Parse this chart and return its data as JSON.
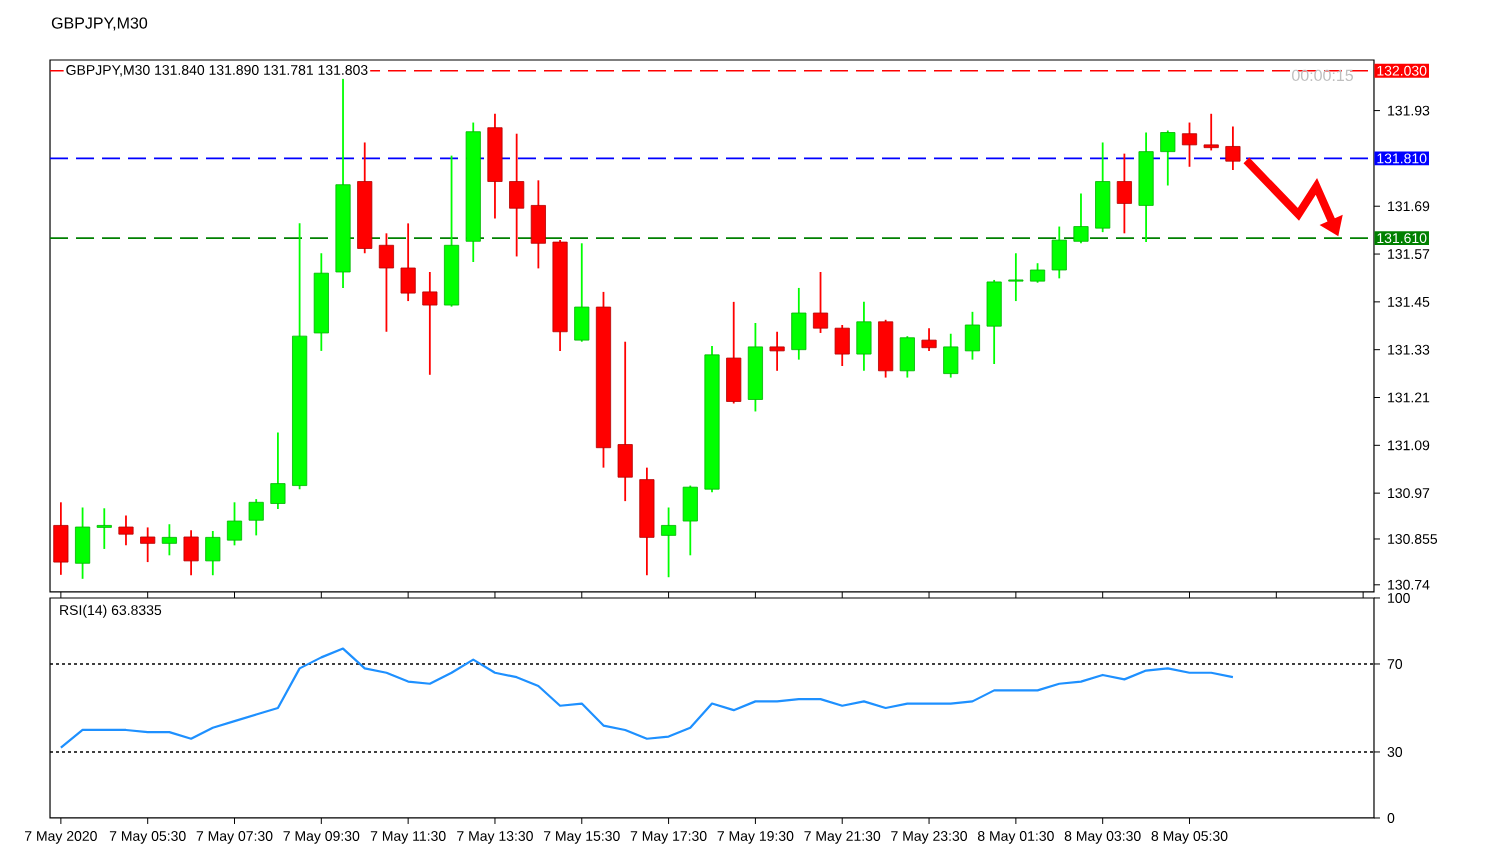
{
  "chart_data": [
    {
      "type": "candlestick",
      "title": "GBPJPY,M30",
      "subtitle": "GBPJPY,M30  131.840 131.890 131.781 131.803",
      "categories": [
        null,
        null,
        null,
        null,
        null,
        null,
        null,
        null,
        null,
        null,
        null,
        null,
        null,
        null,
        null,
        null,
        null,
        null,
        null,
        null,
        null,
        null,
        null,
        null,
        null,
        null,
        null,
        null,
        null,
        null,
        null,
        null,
        null,
        null,
        null,
        null,
        null,
        null,
        null,
        null,
        null,
        null,
        null,
        null,
        null,
        null,
        null,
        null,
        null,
        null,
        null,
        null,
        null,
        null,
        null,
        null,
        null,
        null,
        null,
        null,
        null
      ],
      "ohlc": [
        [
          130.889,
          130.947,
          130.765,
          130.797
        ],
        [
          130.794,
          130.934,
          130.755,
          130.885
        ],
        [
          130.884,
          130.932,
          130.83,
          130.889
        ],
        [
          130.885,
          130.914,
          130.839,
          130.867
        ],
        [
          130.86,
          130.884,
          130.797,
          130.844
        ],
        [
          130.844,
          130.892,
          130.814,
          130.859
        ],
        [
          130.86,
          130.877,
          130.764,
          130.8
        ],
        [
          130.8,
          130.875,
          130.764,
          130.859
        ],
        [
          130.852,
          130.947,
          130.839,
          130.9
        ],
        [
          130.902,
          130.955,
          130.864,
          130.947
        ],
        [
          130.944,
          131.122,
          130.93,
          130.994
        ],
        [
          130.989,
          131.647,
          130.98,
          131.364
        ],
        [
          131.372,
          131.572,
          131.327,
          131.522
        ],
        [
          131.525,
          132.01,
          131.485,
          131.744
        ],
        [
          131.752,
          131.85,
          131.572,
          131.584
        ],
        [
          131.592,
          131.622,
          131.375,
          131.535
        ],
        [
          131.535,
          131.647,
          131.452,
          131.472
        ],
        [
          131.475,
          131.525,
          131.267,
          131.442
        ],
        [
          131.442,
          131.817,
          131.438,
          131.592
        ],
        [
          131.602,
          131.9,
          131.55,
          131.877
        ],
        [
          131.887,
          131.922,
          131.659,
          131.752
        ],
        [
          131.752,
          131.872,
          131.564,
          131.685
        ],
        [
          131.692,
          131.755,
          131.534,
          131.597
        ],
        [
          131.6,
          131.605,
          131.327,
          131.375
        ],
        [
          131.354,
          131.597,
          131.35,
          131.437
        ],
        [
          131.437,
          131.475,
          131.034,
          131.084
        ],
        [
          131.092,
          131.35,
          130.95,
          131.01
        ],
        [
          131.004,
          131.034,
          130.764,
          130.859
        ],
        [
          130.864,
          130.934,
          130.759,
          130.889
        ],
        [
          130.9,
          130.989,
          130.814,
          130.985
        ],
        [
          130.98,
          131.339,
          130.972,
          131.317
        ],
        [
          131.309,
          131.45,
          131.195,
          131.2
        ],
        [
          131.205,
          131.397,
          131.175,
          131.337
        ],
        [
          131.337,
          131.375,
          131.277,
          131.327
        ],
        [
          131.33,
          131.485,
          131.305,
          131.422
        ],
        [
          131.422,
          131.525,
          131.372,
          131.384
        ],
        [
          131.384,
          131.392,
          131.289,
          131.319
        ],
        [
          131.319,
          131.45,
          131.277,
          131.4
        ],
        [
          131.4,
          131.405,
          131.26,
          131.277
        ],
        [
          131.277,
          131.364,
          131.26,
          131.36
        ],
        [
          131.354,
          131.384,
          131.327,
          131.335
        ],
        [
          131.27,
          131.37,
          131.26,
          131.337
        ],
        [
          131.327,
          131.425,
          131.305,
          131.392
        ],
        [
          131.389,
          131.505,
          131.294,
          131.5
        ],
        [
          131.502,
          131.572,
          131.452,
          131.505
        ],
        [
          131.502,
          131.547,
          131.498,
          131.53
        ],
        [
          131.53,
          131.639,
          131.509,
          131.605
        ],
        [
          131.602,
          131.722,
          131.597,
          131.639
        ],
        [
          131.635,
          131.85,
          131.625,
          131.752
        ],
        [
          131.752,
          131.822,
          131.622,
          131.697
        ],
        [
          131.692,
          131.875,
          131.6,
          131.827
        ],
        [
          131.827,
          131.88,
          131.742,
          131.875
        ],
        [
          131.872,
          131.9,
          131.789,
          131.844
        ],
        [
          131.844,
          131.922,
          131.83,
          131.837
        ],
        [
          131.84,
          131.89,
          131.781,
          131.803
        ],
        null,
        null,
        null,
        null,
        null,
        null
      ],
      "colors": [
        "#ff0000",
        "#00ff00",
        "#00ff00",
        "#ff0000",
        "#ff0000",
        "#00ff00",
        "#ff0000",
        "#00ff00",
        "#00ff00",
        "#00ff00",
        "#00ff00",
        "#00ff00",
        "#00ff00",
        "#00ff00",
        "#ff0000",
        "#ff0000",
        "#ff0000",
        "#ff0000",
        "#00ff00",
        "#00ff00",
        "#ff0000",
        "#ff0000",
        "#ff0000",
        "#ff0000",
        "#00ff00",
        "#ff0000",
        "#ff0000",
        "#ff0000",
        "#00ff00",
        "#00ff00",
        "#00ff00",
        "#ff0000",
        "#00ff00",
        "#ff0000",
        "#00ff00",
        "#ff0000",
        "#ff0000",
        "#00ff00",
        "#ff0000",
        "#00ff00",
        "#ff0000",
        "#00ff00",
        "#00ff00",
        "#00ff00",
        "#00ff00",
        "#00ff00",
        "#00ff00",
        "#00ff00",
        "#00ff00",
        "#ff0000",
        "#00ff00",
        "#00ff00",
        "#ff0000",
        "#ff0000",
        "#ff0000",
        null,
        null,
        null,
        null,
        null,
        null
      ],
      "ylim": [
        130.722,
        132.057
      ],
      "yticks": [
        130.74,
        130.855,
        130.97,
        131.09,
        131.21,
        131.33,
        131.45,
        131.57,
        131.69,
        131.93
      ],
      "ref_lines": [
        {
          "axis": "y",
          "value": 132.03,
          "label": "132.030",
          "color": "#ff0000",
          "line_style": "dashed"
        },
        {
          "axis": "y",
          "value": 131.81,
          "label": "131.810",
          "color": "#0000ff",
          "line_style": "dashed"
        },
        {
          "axis": "y",
          "value": 131.61,
          "label": "131.610",
          "color": "#008000",
          "line_style": "dashed"
        }
      ],
      "annotations": [
        "00:00:15"
      ],
      "tick_labels": "y"
    },
    {
      "type": "line",
      "title": "RSI(14) 63.8335",
      "categories": [
        "7 May 2020",
        null,
        null,
        null,
        "7 May 05:30",
        null,
        null,
        null,
        "7 May 07:30",
        null,
        null,
        null,
        "7 May 09:30",
        null,
        null,
        null,
        "7 May 11:30",
        null,
        null,
        null,
        "7 May 13:30",
        null,
        null,
        null,
        "7 May 15:30",
        null,
        null,
        null,
        "7 May 17:30",
        null,
        null,
        null,
        "7 May 19:30",
        null,
        null,
        null,
        "7 May 21:30",
        null,
        null,
        null,
        "7 May 23:30",
        null,
        null,
        null,
        "8 May 01:30",
        null,
        null,
        null,
        "8 May 03:30",
        null,
        null,
        null,
        "8 May 05:30",
        null,
        null,
        null,
        null,
        null,
        null,
        null,
        null
      ],
      "series": [
        {
          "color": "#1e90ff",
          "values": [
            32,
            40,
            40,
            40,
            39,
            39,
            36,
            41,
            44,
            47,
            50,
            68,
            73,
            77,
            68,
            66,
            62,
            61,
            66,
            72,
            66,
            64,
            60,
            51,
            52,
            42,
            40,
            36,
            37,
            41,
            52,
            49,
            53,
            53,
            54,
            54,
            51,
            53,
            50,
            52,
            52,
            52,
            53,
            58,
            58,
            58,
            61,
            62,
            65,
            63,
            67,
            68,
            66,
            66,
            64,
            null,
            null,
            null,
            null,
            null,
            null
          ]
        }
      ],
      "ylim": [
        0,
        100
      ],
      "yticks": [
        0,
        30,
        70,
        100
      ],
      "ref_lines": [
        {
          "axis": "y",
          "value": 30,
          "color": "#000000",
          "line_style": "dotted"
        },
        {
          "axis": "y",
          "value": 70,
          "color": "#000000",
          "line_style": "dotted"
        }
      ],
      "marker": "none",
      "line_style": "solid"
    }
  ]
}
